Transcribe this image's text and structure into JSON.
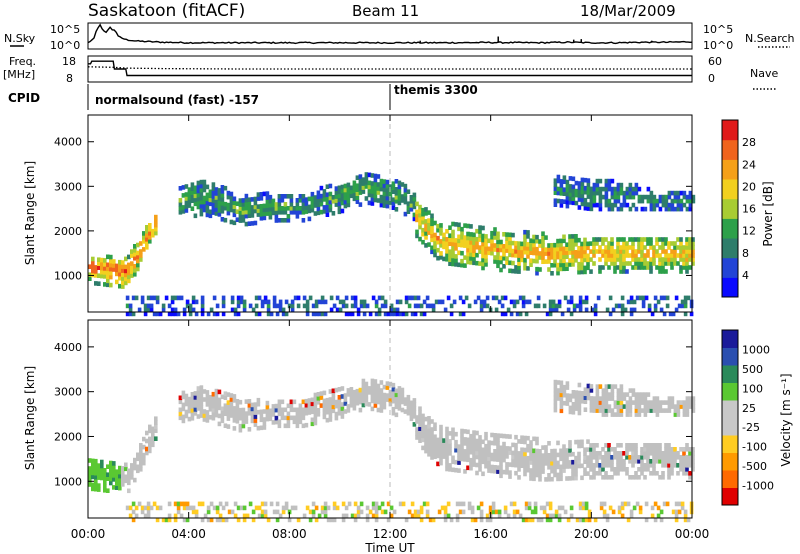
{
  "header": {
    "station": "Saskatoon (fitACF)",
    "beam": "Beam 11",
    "date": "18/Mar/2009"
  },
  "noise_panel": {
    "left_label": "N.Sky",
    "right_label": "N.Search",
    "left_ticks": [
      "10^5",
      "10^0"
    ],
    "right_ticks": [
      "10^5",
      "10^0"
    ]
  },
  "freq_panel": {
    "left_label_1": "Freq.",
    "left_label_2": "[MHz]",
    "right_label": "Nave",
    "left_ticks": [
      "18",
      "8"
    ],
    "right_ticks": [
      "60",
      "0"
    ]
  },
  "cpid_panel": {
    "label": "CPID",
    "modes": [
      "normalsound (fast) -157",
      "themis 3300"
    ]
  },
  "colors": {
    "power_scale": [
      "#0a0aff",
      "#2244d6",
      "#2e7d6b",
      "#2da04a",
      "#a8cc33",
      "#f2d01f",
      "#f5a019",
      "#f0641e",
      "#e01a1a"
    ],
    "velocity_scale": [
      "#e00000",
      "#ff6a00",
      "#ff9a00",
      "#ffcc22",
      "#c8c8c8",
      "#c8c8c8",
      "#5ac832",
      "#2a8a5a",
      "#2a4fb0",
      "#1a1a9a"
    ],
    "ground_scatter": "#c0c0c0"
  },
  "chart_data": [
    {
      "type": "line",
      "name": "noise",
      "x_unit": "hours UT",
      "ylim": [
        0,
        5
      ],
      "series": [
        {
          "name": "N.Sky",
          "x": [
            0,
            0.3,
            0.5,
            0.8,
            1.0,
            1.2,
            1.5,
            2,
            3,
            4,
            6,
            8,
            10,
            12,
            14,
            16,
            18,
            19,
            20,
            21,
            22,
            23,
            24
          ],
          "values": [
            1.2,
            2.2,
            3.5,
            2.6,
            3.2,
            2.4,
            1.8,
            1.5,
            1.3,
            1.2,
            1.2,
            1.2,
            1.2,
            1.2,
            1.2,
            1.25,
            1.2,
            1.3,
            1.2,
            1.2,
            1.3,
            1.3,
            1.4
          ]
        }
      ]
    },
    {
      "type": "line",
      "name": "frequency",
      "x_unit": "hours UT",
      "ylim": [
        8,
        18
      ],
      "series": [
        {
          "name": "Freq",
          "x": [
            0,
            0.1,
            0.15,
            1.0,
            1.05,
            1.5,
            1.55,
            24
          ],
          "values": [
            15,
            15,
            16,
            16,
            13,
            13,
            10.5,
            10.5
          ]
        },
        {
          "name": "Nave",
          "x": [
            0,
            1,
            1.5,
            3,
            6,
            12,
            18,
            24
          ],
          "values": [
            35,
            34,
            32,
            31,
            30,
            30,
            30,
            30
          ]
        }
      ]
    },
    {
      "type": "heatmap",
      "name": "power",
      "ylabel": "Slant Range [km]",
      "xlim": [
        0,
        24
      ],
      "ylim": [
        180,
        4600
      ],
      "y_ticks": [
        1000,
        2000,
        3000,
        4000
      ],
      "colorbar_label": "Power [dB]",
      "colorbar_ticks": [
        4,
        8,
        12,
        16,
        20,
        24,
        28
      ],
      "bands": [
        {
          "x": [
            0,
            1.5,
            2.0,
            2.7
          ],
          "center": [
            1150,
            1050,
            1500,
            2250
          ],
          "width": [
            350,
            350,
            300,
            250
          ],
          "power": 24
        },
        {
          "x": [
            3.6,
            4.5,
            6.0,
            7.5,
            8.5,
            10.0,
            11.0,
            12.0,
            13.0
          ],
          "center": [
            2600,
            2750,
            2450,
            2500,
            2500,
            2750,
            2950,
            2850,
            2500
          ],
          "width": [
            400,
            400,
            350,
            300,
            300,
            350,
            350,
            350,
            300
          ],
          "power": 10
        },
        {
          "x": [
            13.0,
            14.0,
            16.0,
            18.0,
            20.0,
            22.0,
            24.0
          ],
          "center": [
            2250,
            1700,
            1550,
            1450,
            1450,
            1450,
            1450
          ],
          "width": [
            400,
            450,
            450,
            450,
            400,
            400,
            400
          ],
          "power": 20
        },
        {
          "x": [
            18.5,
            20.0,
            21.5,
            22.5,
            24.0
          ],
          "center": [
            2900,
            2800,
            2750,
            2650,
            2650
          ],
          "width": [
            350,
            350,
            300,
            200,
            200
          ],
          "power": 8
        },
        {
          "x": [
            1.5,
            6.0,
            12.0,
            18.0,
            24.0
          ],
          "center": [
            300,
            300,
            300,
            300,
            300
          ],
          "width": [
            200,
            200,
            200,
            200,
            200
          ],
          "power": 6
        }
      ]
    },
    {
      "type": "heatmap",
      "name": "velocity",
      "xlabel": "Time UT",
      "ylabel": "Slant Range [km]",
      "xlim": [
        0,
        24
      ],
      "ylim": [
        180,
        4600
      ],
      "y_ticks": [
        1000,
        2000,
        3000,
        4000
      ],
      "x_ticks": [
        "00:00",
        "04:00",
        "08:00",
        "12:00",
        "16:00",
        "20:00",
        "00:00"
      ],
      "colorbar_label": "Velocity [m s⁻¹]",
      "colorbar_ticks": [
        "-1000",
        "-500",
        "-100",
        "-25",
        "25",
        "100",
        "500",
        "1000"
      ]
    }
  ]
}
